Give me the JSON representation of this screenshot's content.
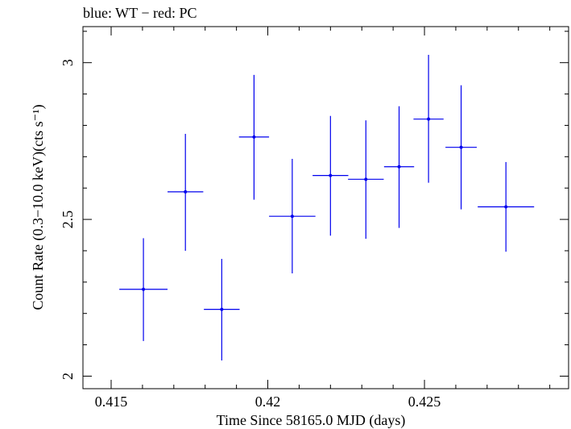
{
  "chart_data": {
    "type": "scatter",
    "title": "blue: WT − red: PC",
    "xlabel": "Time Since 58165.0 MJD (days)",
    "ylabel": "Count Rate (0.3−10.0 keV)(cts s⁻¹)",
    "xlim": [
      0.4141,
      0.4296
    ],
    "ylim": [
      1.96,
      3.115
    ],
    "x_ticks": [
      0.415,
      0.42,
      0.425
    ],
    "x_tick_labels": [
      "0.415",
      "0.42",
      "0.425"
    ],
    "y_ticks": [
      2,
      2.5,
      3
    ],
    "y_tick_labels": [
      "2",
      "2.5",
      "3"
    ],
    "grid": false,
    "series": [
      {
        "color": "#0000ee",
        "points": [
          {
            "x": 0.41603,
            "xerr": 0.00077,
            "y": 2.277,
            "yerr_low": 0.165,
            "yerr_high": 0.163
          },
          {
            "x": 0.41737,
            "xerr": 0.00057,
            "y": 2.588,
            "yerr_low": 0.188,
            "yerr_high": 0.185
          },
          {
            "x": 0.41853,
            "xerr": 0.00057,
            "y": 2.213,
            "yerr_low": 0.163,
            "yerr_high": 0.161
          },
          {
            "x": 0.41956,
            "xerr": 0.00048,
            "y": 2.763,
            "yerr_low": 0.2,
            "yerr_high": 0.198
          },
          {
            "x": 0.42078,
            "xerr": 0.00074,
            "y": 2.51,
            "yerr_low": 0.182,
            "yerr_high": 0.183
          },
          {
            "x": 0.422,
            "xerr": 0.00057,
            "y": 2.64,
            "yerr_low": 0.192,
            "yerr_high": 0.19
          },
          {
            "x": 0.42313,
            "xerr": 0.00057,
            "y": 2.628,
            "yerr_low": 0.19,
            "yerr_high": 0.188
          },
          {
            "x": 0.42419,
            "xerr": 0.00048,
            "y": 2.668,
            "yerr_low": 0.195,
            "yerr_high": 0.193
          },
          {
            "x": 0.42513,
            "xerr": 0.00048,
            "y": 2.82,
            "yerr_low": 0.203,
            "yerr_high": 0.205
          },
          {
            "x": 0.42617,
            "xerr": 0.0005,
            "y": 2.73,
            "yerr_low": 0.198,
            "yerr_high": 0.198
          },
          {
            "x": 0.4276,
            "xerr": 0.0009,
            "y": 2.54,
            "yerr_low": 0.143,
            "yerr_high": 0.143
          }
        ]
      }
    ]
  }
}
